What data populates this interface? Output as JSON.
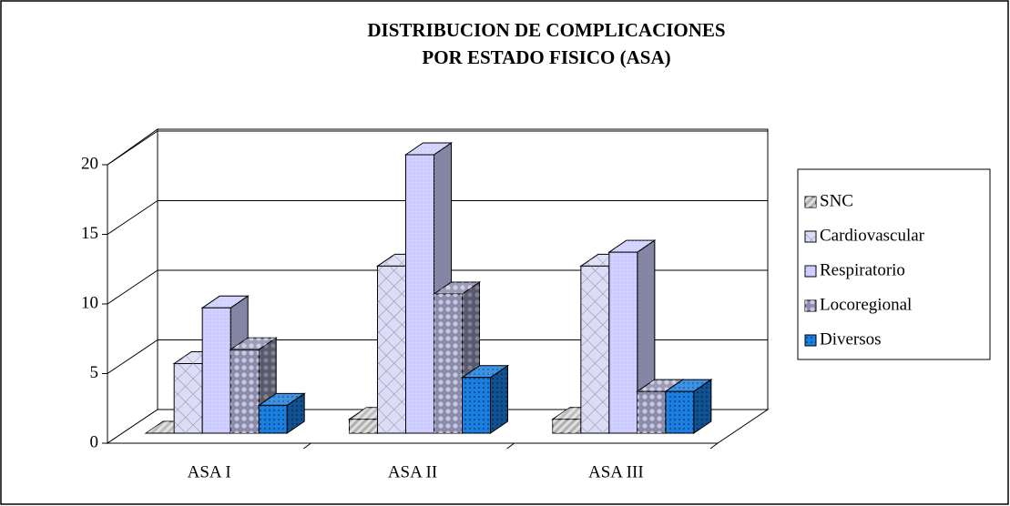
{
  "chart_data": {
    "type": "bar3d",
    "title": [
      "DISTRIBUCION DE COMPLICACIONES",
      "POR ESTADO FISICO (ASA)"
    ],
    "categories": [
      "ASA I",
      "ASA II",
      "ASA III"
    ],
    "series": [
      {
        "name": "SNC",
        "color": "#b0b0b0",
        "values": [
          0,
          1,
          1
        ]
      },
      {
        "name": "Cardiovascular",
        "color": "#dcdcf4",
        "values": [
          5,
          12,
          12
        ]
      },
      {
        "name": "Respiratorio",
        "color": "#ccccff",
        "values": [
          9,
          20,
          13
        ]
      },
      {
        "name": "Locoregional",
        "color": "#8c8cac",
        "values": [
          6,
          10,
          3
        ]
      },
      {
        "name": "Diversos",
        "color": "#1a7fe0",
        "values": [
          2,
          4,
          3
        ]
      }
    ],
    "ylim": [
      0,
      20
    ],
    "yticks": [
      0,
      5,
      10,
      15,
      20
    ],
    "grid": true,
    "legend": "right"
  }
}
